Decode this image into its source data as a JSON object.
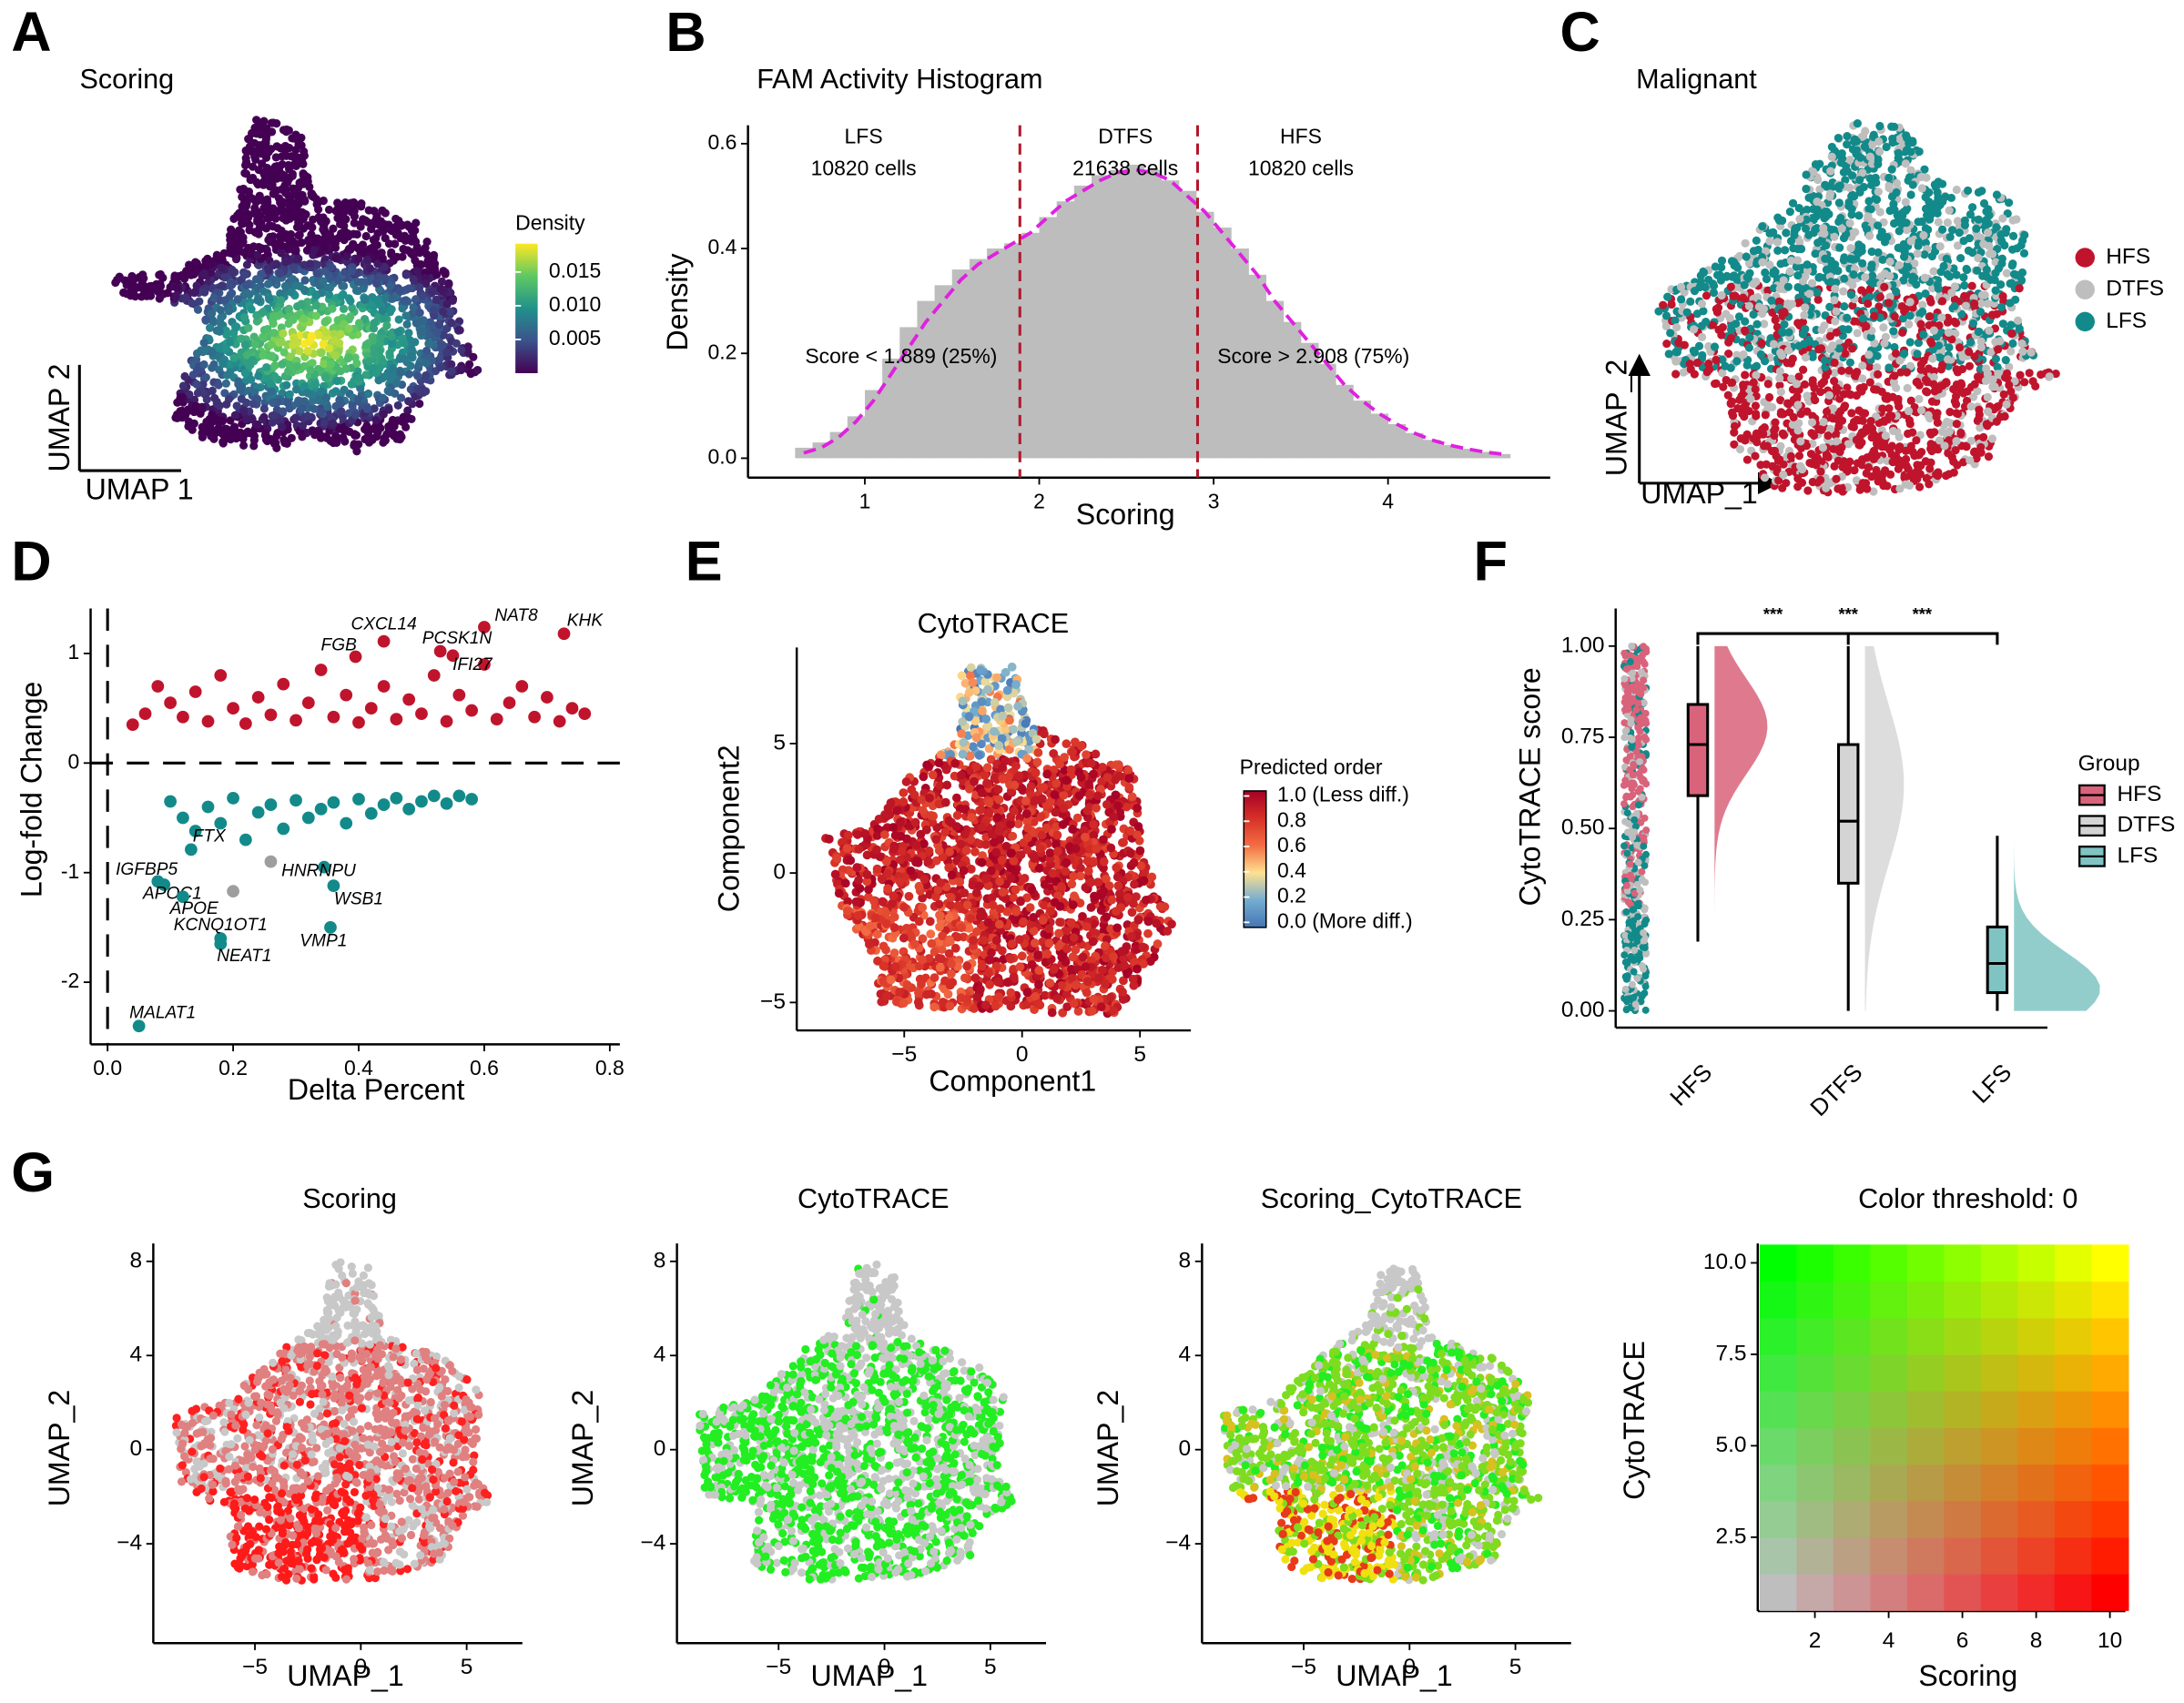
{
  "panel_labels": [
    "A",
    "B",
    "C",
    "D",
    "E",
    "F",
    "G"
  ],
  "chart_data": [
    {
      "type": "scatter",
      "title": "Scoring",
      "xlabel": "UMAP 1",
      "ylabel": "UMAP 2",
      "colorbar": {
        "title": "Density",
        "lim": [
          0,
          0.0192
        ],
        "ticks": [
          0.015,
          {
            "value": 0.01,
            "label": "0.010"
          },
          0.005
        ]
      }
    },
    {
      "type": "histogram",
      "title": "FAM Activity Histogram",
      "xlabel": "Scoring",
      "ylabel": "Density",
      "color": "#bdbdbd",
      "xlim": [
        0.33,
        4.93
      ],
      "ylim": [
        -0.037,
        0.635
      ],
      "xticks": [
        1,
        2,
        3,
        4
      ],
      "yticks": [
        {
          "value": 0,
          "label": "0.0"
        },
        {
          "value": 0.2,
          "label": "0.2"
        },
        {
          "value": 0.4,
          "label": "0.4"
        },
        {
          "value": 0.6,
          "label": "0.6"
        }
      ],
      "bins": [
        0.6,
        0.7,
        0.8,
        0.9,
        1.0,
        1.1,
        1.2,
        1.3,
        1.4,
        1.5,
        1.6,
        1.7,
        1.8,
        1.9,
        2.0,
        2.1,
        2.2,
        2.3,
        2.4,
        2.5,
        2.6,
        2.7,
        2.8,
        2.9,
        3.0,
        3.1,
        3.2,
        3.3,
        3.4,
        3.5,
        3.6,
        3.7,
        3.8,
        3.9,
        4.0,
        4.1,
        4.2,
        4.3,
        4.4,
        4.5,
        4.6,
        4.7
      ],
      "values": [
        0.02,
        0.03,
        0.05,
        0.08,
        0.13,
        0.19,
        0.25,
        0.3,
        0.33,
        0.36,
        0.38,
        0.4,
        0.41,
        0.43,
        0.46,
        0.49,
        0.52,
        0.54,
        0.55,
        0.56,
        0.55,
        0.53,
        0.51,
        0.47,
        0.44,
        0.4,
        0.35,
        0.3,
        0.26,
        0.22,
        0.18,
        0.14,
        0.11,
        0.085,
        0.065,
        0.048,
        0.035,
        0.025,
        0.018,
        0.012,
        0.008
      ],
      "density_line": {
        "color": "#e020e0",
        "x": [
          0.65,
          0.75,
          0.85,
          0.95,
          1.05,
          1.15,
          1.25,
          1.35,
          1.45,
          1.55,
          1.65,
          1.75,
          1.85,
          1.95,
          2.05,
          2.15,
          2.25,
          2.35,
          2.45,
          2.55,
          2.65,
          2.75,
          2.85,
          2.95,
          3.05,
          3.15,
          3.25,
          3.35,
          3.45,
          3.55,
          3.65,
          3.75,
          3.85,
          3.95,
          4.05,
          4.15,
          4.25,
          4.35,
          4.45,
          4.55,
          4.65
        ],
        "values": [
          0.01,
          0.02,
          0.04,
          0.07,
          0.11,
          0.16,
          0.21,
          0.26,
          0.3,
          0.34,
          0.37,
          0.39,
          0.41,
          0.43,
          0.46,
          0.49,
          0.51,
          0.53,
          0.545,
          0.55,
          0.545,
          0.53,
          0.5,
          0.47,
          0.43,
          0.39,
          0.35,
          0.3,
          0.26,
          0.22,
          0.18,
          0.14,
          0.11,
          0.085,
          0.065,
          0.048,
          0.035,
          0.025,
          0.018,
          0.012,
          0.008
        ]
      },
      "thresholds": [
        1.889,
        2.908
      ],
      "threshold_color": "#b2182b",
      "regions": [
        {
          "name": "LFS",
          "count": "10820 cells"
        },
        {
          "name": "DTFS",
          "count": "21638 cells"
        },
        {
          "name": "HFS",
          "count": "10820 cells"
        }
      ],
      "annotations": [
        "Score < 1.889 (25%)",
        "Score > 2.908 (75%)"
      ]
    },
    {
      "type": "scatter",
      "title": "Malignant",
      "xlabel": "UMAP_1",
      "ylabel": "UMAP_2",
      "legend": {
        "categories": [
          "HFS",
          "DTFS",
          "LFS"
        ],
        "colors": [
          "#c0142d",
          "#bebebe",
          "#138a8a"
        ]
      }
    },
    {
      "type": "scatter",
      "xlabel": "Delta Percent",
      "ylabel": "Log-fold Change",
      "xlim": [
        -0.027,
        0.816
      ],
      "ylim": [
        -2.567,
        1.41
      ],
      "xticks": [
        {
          "value": 0,
          "label": "0.0"
        },
        0.2,
        0.4,
        0.6,
        0.8
      ],
      "yticks": [
        -2,
        -1,
        0,
        1
      ],
      "hlines": [
        0
      ],
      "vlines": [
        0
      ],
      "series": [
        {
          "color": "#c0142d",
          "x": [
            0.04,
            0.06,
            0.08,
            0.1,
            0.12,
            0.14,
            0.16,
            0.18,
            0.2,
            0.22,
            0.24,
            0.26,
            0.28,
            0.3,
            0.32,
            0.34,
            0.36,
            0.38,
            0.4,
            0.42,
            0.44,
            0.46,
            0.48,
            0.5,
            0.52,
            0.54,
            0.56,
            0.58,
            0.6,
            0.62,
            0.64,
            0.66,
            0.68,
            0.7,
            0.72,
            0.74,
            0.76
          ],
          "values": [
            0.35,
            0.45,
            0.7,
            0.55,
            0.42,
            0.65,
            0.38,
            0.8,
            0.5,
            0.36,
            0.6,
            0.44,
            0.72,
            0.39,
            0.55,
            0.85,
            0.42,
            0.62,
            0.37,
            0.5,
            0.7,
            0.4,
            0.58,
            0.45,
            0.8,
            0.38,
            0.62,
            0.48,
            0.9,
            0.4,
            0.55,
            0.7,
            0.42,
            0.6,
            0.38,
            0.5,
            0.45
          ]
        },
        {
          "color": "#138a8a",
          "x": [
            0.1,
            0.12,
            0.14,
            0.16,
            0.18,
            0.2,
            0.22,
            0.24,
            0.26,
            0.28,
            0.3,
            0.32,
            0.34,
            0.36,
            0.38,
            0.4,
            0.42,
            0.44,
            0.46,
            0.48,
            0.5,
            0.52,
            0.54,
            0.56,
            0.58
          ],
          "values": [
            -0.35,
            -0.5,
            -0.62,
            -0.4,
            -0.55,
            -0.32,
            -0.7,
            -0.45,
            -0.38,
            -0.6,
            -0.34,
            -0.5,
            -0.42,
            -0.36,
            -0.55,
            -0.33,
            -0.46,
            -0.38,
            -0.32,
            -0.42,
            -0.35,
            -0.3,
            -0.37,
            -0.3,
            -0.33
          ]
        },
        {
          "color": "#9e9e9e",
          "x": [
            0.2,
            0.26
          ],
          "values": [
            -1.17,
            -0.9
          ]
        }
      ],
      "annotations": [
        {
          "text": "KHK",
          "x": 0.727,
          "y": 1.18,
          "color": "#c0142d"
        },
        {
          "text": "NAT8",
          "x": 0.6,
          "y": 1.24,
          "color": "#c0142d"
        },
        {
          "text": "CXCL14",
          "x": 0.44,
          "y": 1.11,
          "color": "#c0142d"
        },
        {
          "text": "FGB",
          "x": 0.395,
          "y": 0.97,
          "color": "#c0142d"
        },
        {
          "text": "PCSK1N",
          "x": 0.53,
          "y": 1.02,
          "color": "#c0142d"
        },
        {
          "text": "IFI27",
          "x": 0.55,
          "y": 0.98,
          "color": "#c0142d"
        },
        {
          "text": "FTX",
          "x": 0.133,
          "y": -0.79,
          "color": "#138a8a"
        },
        {
          "text": "IGFBP5",
          "x": 0.08,
          "y": -1.08,
          "color": "#138a8a"
        },
        {
          "text": "APOC1",
          "x": 0.09,
          "y": -1.11,
          "color": "#138a8a"
        },
        {
          "text": "APOE",
          "x": 0.12,
          "y": -1.22,
          "color": "#138a8a"
        },
        {
          "text": "KCNQ1OT1",
          "x": 0.18,
          "y": -1.6,
          "color": "#138a8a"
        },
        {
          "text": "NEAT1",
          "x": 0.18,
          "y": -1.65,
          "color": "#138a8a"
        },
        {
          "text": "HNRNPU",
          "x": 0.345,
          "y": -0.95,
          "color": "#138a8a"
        },
        {
          "text": "WSB1",
          "x": 0.36,
          "y": -1.12,
          "color": "#138a8a"
        },
        {
          "text": "VMP1",
          "x": 0.355,
          "y": -1.5,
          "color": "#138a8a"
        },
        {
          "text": "MALAT1",
          "x": 0.05,
          "y": -2.4,
          "color": "#138a8a"
        }
      ]
    },
    {
      "type": "scatter",
      "title": "CytoTRACE",
      "xlabel": "Component1",
      "ylabel": "Component2",
      "xlim": [
        -9.56,
        7.16
      ],
      "ylim": [
        -6.08,
        8.71
      ],
      "xticks": [
        {
          "value": -5,
          "label": "−5"
        },
        0,
        5
      ],
      "yticks": [
        {
          "value": -5,
          "label": "−5"
        },
        0,
        5
      ],
      "colorbar": {
        "title": "Predicted order",
        "lim": [
          -0.04,
          1.04
        ],
        "ticks": [
          {
            "value": 1,
            "label": "1.0 (Less diff.)"
          },
          0.8,
          0.6,
          0.4,
          0.2,
          {
            "value": 0,
            "label": "0.0 (More diff.)"
          }
        ]
      }
    },
    {
      "type": "box",
      "ylabel": "CytoTRACE score",
      "categories": [
        "HFS",
        "DTFS",
        "LFS"
      ],
      "colors": [
        "#d9637a",
        "#d4d4d4",
        "#7fc4c2"
      ],
      "ylim": [
        -0.046,
        1.103
      ],
      "yticks": [
        {
          "value": 0,
          "label": "0.00"
        },
        {
          "value": 0.25,
          "label": "0.25"
        },
        {
          "value": 0.5,
          "label": "0.50"
        },
        {
          "value": 0.75,
          "label": "0.75"
        },
        {
          "value": 1,
          "label": "1.00"
        }
      ],
      "boxes": [
        {
          "min": 0.19,
          "q1": 0.59,
          "median": 0.73,
          "q3": 0.84,
          "max": 1.0
        },
        {
          "min": 0.0,
          "q1": 0.35,
          "median": 0.52,
          "q3": 0.73,
          "max": 1.0
        },
        {
          "min": 0.0,
          "q1": 0.05,
          "median": 0.13,
          "q3": 0.23,
          "max": 0.48
        }
      ],
      "legend_title": "Group",
      "significance": [
        "***",
        "***",
        "***"
      ]
    },
    {
      "type": "scatter",
      "title": "Scoring",
      "xlabel": "UMAP_1",
      "ylabel": "UMAP_2",
      "xlim": [
        -9.8,
        7.63
      ],
      "ylim": [
        -8.22,
        8.76
      ],
      "xticks": [
        {
          "value": -5,
          "label": "−5"
        },
        0,
        5
      ],
      "yticks": [
        {
          "value": -4,
          "label": "−4"
        },
        0,
        4,
        8
      ]
    },
    {
      "type": "scatter",
      "title": "CytoTRACE",
      "xlabel": "UMAP_1",
      "ylabel": "UMAP_2",
      "xlim": [
        -9.8,
        7.63
      ],
      "ylim": [
        -8.22,
        8.76
      ],
      "xticks": [
        {
          "value": -5,
          "label": "−5"
        },
        0,
        5
      ],
      "yticks": [
        {
          "value": -4,
          "label": "−4"
        },
        0,
        4,
        8
      ]
    },
    {
      "type": "scatter",
      "title": "Scoring_CytoTRACE",
      "xlabel": "UMAP_1",
      "ylabel": "UMAP_2",
      "xlim": [
        -9.8,
        7.63
      ],
      "ylim": [
        -8.22,
        8.76
      ],
      "xticks": [
        {
          "value": -5,
          "label": "−5"
        },
        0,
        5
      ],
      "yticks": [
        {
          "value": -4,
          "label": "−4"
        },
        0,
        4,
        8
      ]
    },
    {
      "type": "heatmap",
      "title": "Color threshold: 0",
      "xlabel": "Scoring",
      "ylabel": "CytoTRACE",
      "x": [
        1,
        2,
        3,
        4,
        5,
        6,
        7,
        8,
        9,
        10
      ],
      "y": [
        1,
        2,
        3,
        4,
        5,
        6,
        7,
        8,
        9,
        10
      ],
      "xlim": [
        0.45,
        10.42
      ],
      "ylim": [
        0.48,
        10.53
      ],
      "xticks": [
        2,
        4,
        6,
        8,
        10
      ],
      "yticks": [
        2.5,
        {
          "value": 5,
          "label": "5.0"
        },
        7.5,
        {
          "value": 10,
          "label": "10.0"
        }
      ],
      "corner_colors": {
        "low-low": "#bebebe",
        "high-low": "#ff0000",
        "low-high": "#00ff00",
        "high-high": "#ffff00"
      }
    }
  ]
}
